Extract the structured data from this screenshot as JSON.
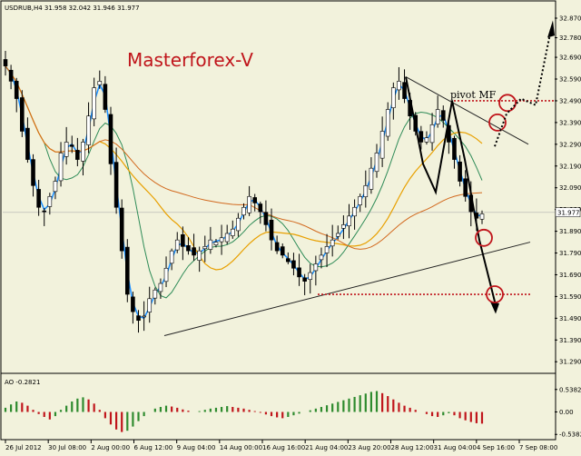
{
  "chart_data": {
    "type": "candlestick",
    "symbol_header": "USDRUB,H4  31.958 32.042 31.946 31.977",
    "watermark": "Masterforex-V",
    "annotation": "pivot MF",
    "price_axis": {
      "ticks": [
        "32.870",
        "32.780",
        "32.690",
        "32.590",
        "32.490",
        "32.390",
        "32.290",
        "32.190",
        "32.090",
        "31.990",
        "31.890",
        "31.790",
        "31.690",
        "31.590",
        "31.490",
        "31.390",
        "31.290"
      ],
      "ylim": [
        31.245,
        32.895
      ],
      "current_price": "31.977"
    },
    "time_axis": {
      "ticks": [
        "26 Jul 2012",
        "30 Jul 08:00",
        "2 Aug 00:00",
        "6 Aug 12:00",
        "9 Aug 04:00",
        "14 Aug 00:00",
        "16 Aug 16:00",
        "21 Aug 04:00",
        "23 Aug 20:00",
        "28 Aug 12:00",
        "31 Aug 04:00",
        "4 Sep 16:00",
        "7 Sep 08:00"
      ]
    },
    "price_series": [
      32.65,
      32.58,
      32.5,
      32.35,
      32.22,
      32.1,
      32.0,
      31.98,
      32.05,
      32.12,
      32.25,
      32.3,
      32.28,
      32.22,
      32.3,
      32.42,
      32.55,
      32.58,
      32.45,
      32.2,
      32.0,
      31.8,
      31.6,
      31.52,
      31.48,
      31.5,
      31.58,
      31.62,
      31.65,
      31.72,
      31.8,
      31.85,
      31.82,
      31.8,
      31.78,
      31.8,
      31.82,
      31.85,
      31.84,
      31.86,
      31.88,
      31.9,
      31.95,
      32.0,
      32.05,
      32.02,
      31.98,
      31.92,
      31.85,
      31.8,
      31.78,
      31.75,
      31.72,
      31.68,
      31.66,
      31.7,
      31.74,
      31.78,
      31.82,
      31.85,
      31.88,
      31.92,
      31.96,
      32.0,
      32.05,
      32.1,
      32.18,
      32.25,
      32.35,
      32.45,
      32.55,
      32.58,
      32.5,
      32.42,
      32.35,
      32.3,
      32.32,
      32.38,
      32.45,
      32.4,
      32.3,
      32.22,
      32.12,
      32.05,
      31.98,
      31.95,
      31.97
    ],
    "lines": {
      "ema_fast": {
        "color": "#1E90FF"
      },
      "ma_mid": {
        "color": "#2E8B57"
      },
      "ma_slow": {
        "color": "#E8A000"
      },
      "ma_long": {
        "color": "#D2691E"
      }
    },
    "levels": {
      "pivot_mf": 32.49,
      "support": 31.6
    },
    "indicator": {
      "label": "AO -0.2821",
      "ticks": [
        "0.5382",
        "0.00",
        "-0.5382"
      ],
      "ylim": [
        -0.62,
        0.62
      ],
      "values": [
        0.1,
        0.18,
        0.25,
        0.22,
        0.15,
        0.05,
        -0.05,
        -0.12,
        -0.18,
        -0.1,
        0.05,
        0.15,
        0.25,
        0.32,
        0.35,
        0.3,
        0.2,
        0.05,
        -0.15,
        -0.3,
        -0.42,
        -0.48,
        -0.45,
        -0.35,
        -0.22,
        -0.1,
        0.0,
        0.08,
        0.12,
        0.15,
        0.13,
        0.1,
        0.06,
        0.03,
        0.0,
        0.02,
        0.05,
        0.08,
        0.1,
        0.12,
        0.14,
        0.12,
        0.1,
        0.08,
        0.05,
        0.02,
        -0.02,
        -0.06,
        -0.1,
        -0.13,
        -0.15,
        -0.12,
        -0.08,
        -0.04,
        0.0,
        0.04,
        0.08,
        0.12,
        0.16,
        0.2,
        0.24,
        0.28,
        0.32,
        0.36,
        0.4,
        0.44,
        0.48,
        0.5,
        0.45,
        0.38,
        0.3,
        0.22,
        0.15,
        0.1,
        0.05,
        0.0,
        -0.05,
        -0.1,
        -0.12,
        -0.08,
        -0.03,
        -0.08,
        -0.15,
        -0.2,
        -0.24,
        -0.27,
        -0.28
      ],
      "up_color": "#2E8B2E",
      "down_color": "#C0151B"
    },
    "grid": false
  }
}
